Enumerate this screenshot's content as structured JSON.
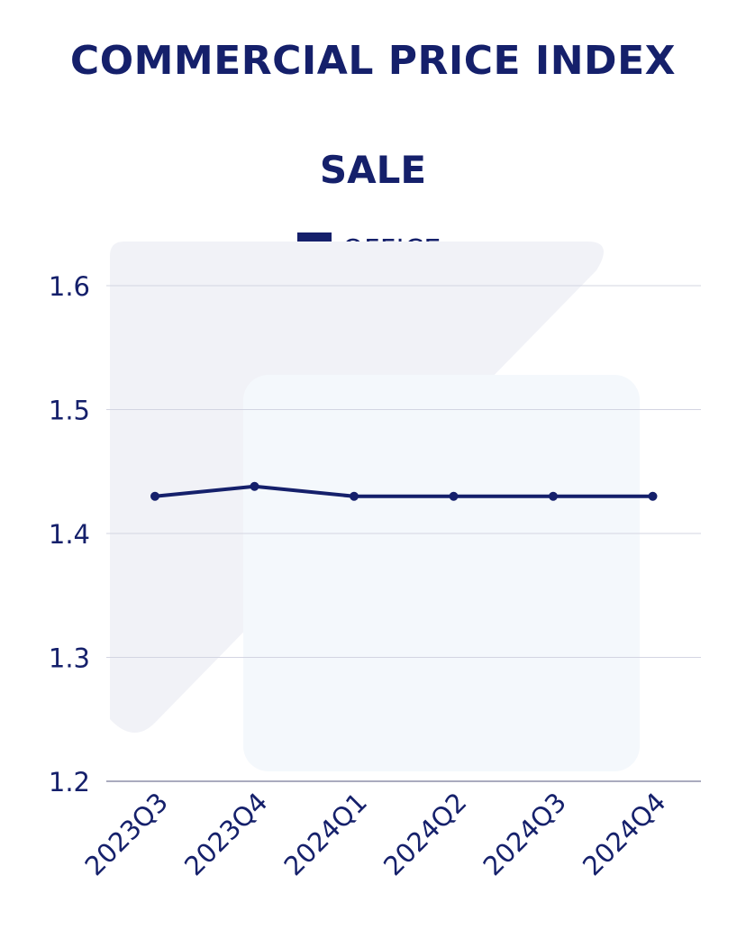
{
  "header": {
    "title": "COMMERCIAL PRICE INDEX",
    "subtitle": "SALE"
  },
  "legend": {
    "label": "OFFICE",
    "color": "#15206b"
  },
  "chart_data": {
    "type": "line",
    "title": "SALE",
    "categories": [
      "2023Q3",
      "2023Q4",
      "2024Q1",
      "2024Q2",
      "2024Q3",
      "2024Q4"
    ],
    "series": [
      {
        "name": "OFFICE",
        "values": [
          1.43,
          1.438,
          1.43,
          1.43,
          1.43,
          1.43
        ]
      }
    ],
    "yticks": [
      "1.2",
      "1.3",
      "1.4",
      "1.5",
      "1.6"
    ],
    "ylim": [
      1.2,
      1.6
    ],
    "grid": true,
    "legend_position": "top"
  }
}
